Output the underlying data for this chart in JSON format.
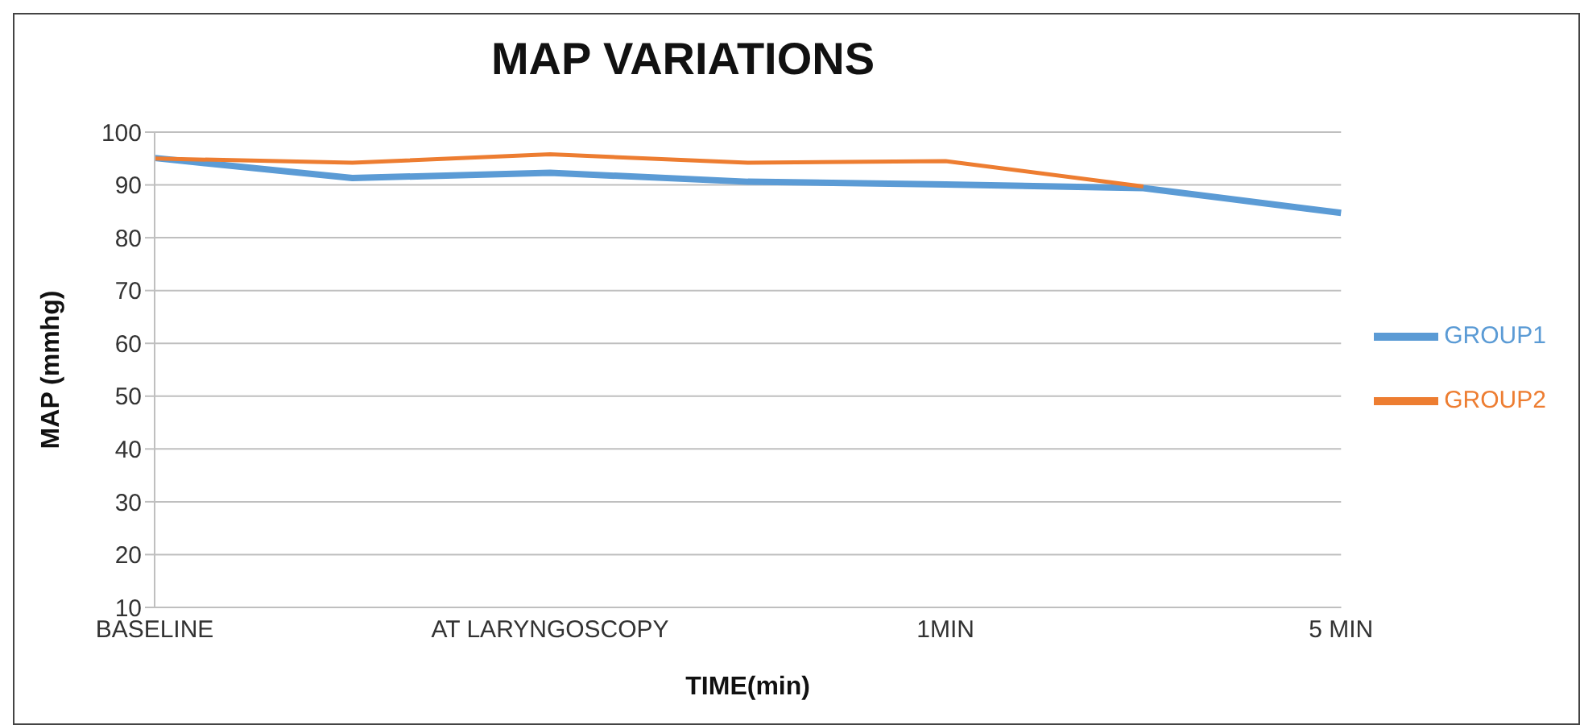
{
  "chart_data": {
    "type": "line",
    "title": "MAP VARIATIONS",
    "xlabel": "TIME(min)",
    "ylabel": "MAP (mmhg)",
    "categories": [
      "BASELINE",
      null,
      "AT LARYNGOSCOPY",
      null,
      "1MIN",
      null,
      "5 MIN"
    ],
    "series": [
      {
        "name": "GROUP1",
        "color": "#5b9bd5",
        "values": [
          95.1,
          91.3,
          92.3,
          90.6,
          90.1,
          89.4,
          84.7
        ]
      },
      {
        "name": "GROUP2",
        "color": "#ed7d31",
        "values": [
          95,
          94.2,
          95.8,
          94.2,
          94.5,
          89.7,
          null
        ]
      }
    ],
    "ylim": [
      10,
      100
    ],
    "yticks": [
      10,
      20,
      30,
      40,
      50,
      60,
      70,
      80,
      90,
      100
    ],
    "grid": "y",
    "legend": "right",
    "marker": "none",
    "line_style": "solid"
  }
}
